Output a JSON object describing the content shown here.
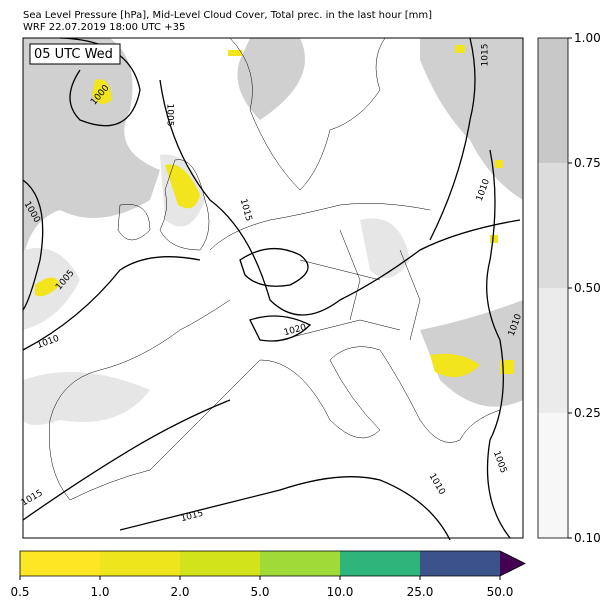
{
  "header": {
    "title": "Sea Level Pressure [hPa], Mid-Level Cloud Cover, Total prec. in the last hour [mm]",
    "subtitle": "WRF 22.07.2019 18:00 UTC +35"
  },
  "map": {
    "time_label": "05 UTC Wed",
    "isobar_labels": [
      "1000",
      "1005",
      "1000",
      "1005",
      "1010",
      "1015",
      "1015",
      "1010",
      "1010",
      "1020",
      "1015",
      "1015",
      "1010",
      "1005"
    ]
  },
  "cloud_colorbar": {
    "colors": [
      "#f7f7f7",
      "#ebebeb",
      "#dcdcdc",
      "#c8c8c8"
    ],
    "ticks": [
      {
        "value": 0.1,
        "label": "0.10"
      },
      {
        "value": 0.25,
        "label": "0.25"
      },
      {
        "value": 0.5,
        "label": "0.50"
      },
      {
        "value": 0.75,
        "label": "0.75"
      },
      {
        "value": 1,
        "label": "1.00"
      }
    ]
  },
  "precip_colorbar": {
    "colors": [
      "#fde725",
      "#efe51c",
      "#d2e21b",
      "#a0da39",
      "#2fb47c",
      "#3b528b"
    ],
    "extend_color": "#440154",
    "ticks": [
      0.5,
      {
        "value": 1,
        "label": "1.0"
      },
      {
        "value": 2,
        "label": "2.0"
      },
      {
        "value": 5,
        "label": "5.0"
      },
      {
        "value": 10,
        "label": "10.0"
      },
      {
        "value": 25,
        "label": "25.0"
      },
      {
        "value": 50,
        "label": "50.0"
      }
    ]
  }
}
